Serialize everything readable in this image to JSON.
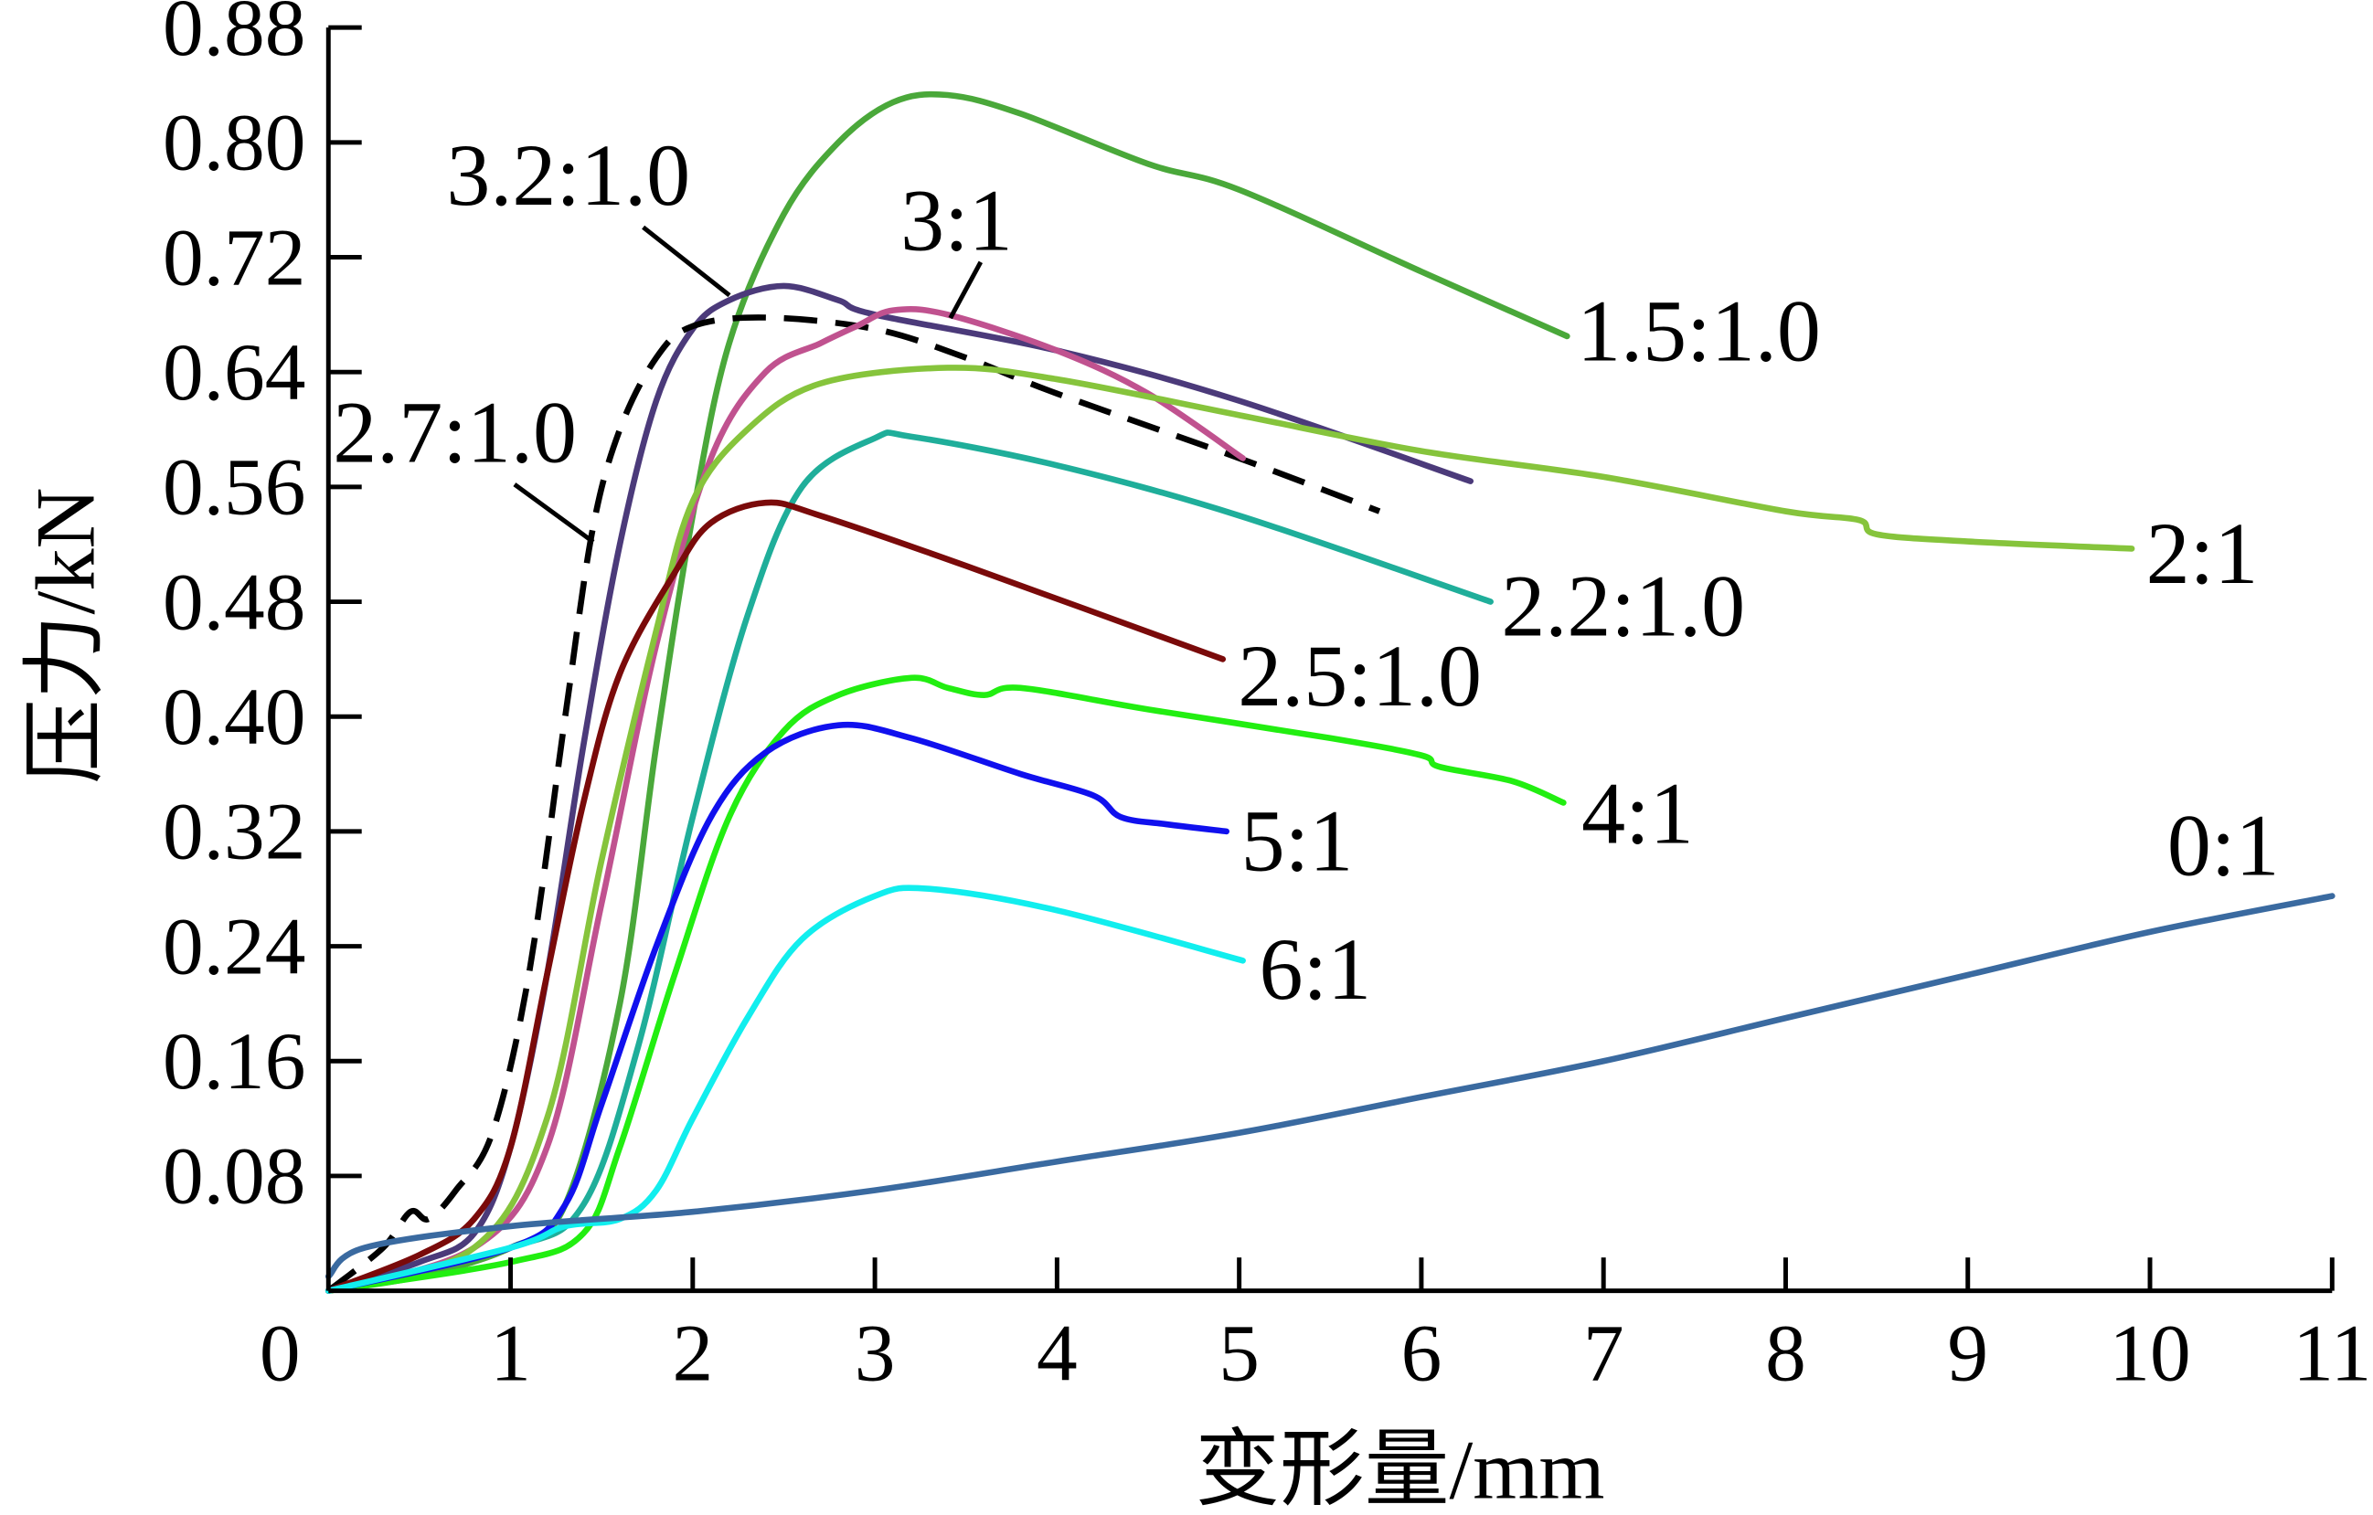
{
  "chart_data": {
    "type": "line",
    "title": "",
    "xlabel": "变形量/mm",
    "ylabel": "压力/kN",
    "xlim": [
      0,
      11
    ],
    "ylim": [
      0,
      0.88
    ],
    "xticks": [
      "0",
      "1",
      "2",
      "3",
      "4",
      "5",
      "6",
      "7",
      "8",
      "9",
      "10",
      "11"
    ],
    "yticks": [
      "0.08",
      "0.16",
      "0.24",
      "0.32",
      "0.40",
      "0.48",
      "0.56",
      "0.64",
      "0.72",
      "0.80",
      "0.88"
    ],
    "grid": false,
    "legend": "none (inline labels)",
    "series": [
      {
        "name": "1.5:1.0",
        "color": "#4aa83a",
        "dashed": false,
        "points": [
          [
            0,
            0
          ],
          [
            0.5,
            0.01
          ],
          [
            1,
            0.03
          ],
          [
            1.3,
            0.06
          ],
          [
            1.6,
            0.2
          ],
          [
            1.8,
            0.38
          ],
          [
            2.0,
            0.54
          ],
          [
            2.2,
            0.66
          ],
          [
            2.5,
            0.75
          ],
          [
            2.8,
            0.8
          ],
          [
            3.1,
            0.828
          ],
          [
            3.4,
            0.833
          ],
          [
            3.8,
            0.82
          ],
          [
            4.5,
            0.785
          ],
          [
            5,
            0.767
          ],
          [
            6,
            0.71
          ],
          [
            6.8,
            0.665
          ]
        ]
      },
      {
        "name": "3.2:1.0",
        "color": "#4b3a7a",
        "dashed": false,
        "points": [
          [
            0,
            0
          ],
          [
            0.5,
            0.02
          ],
          [
            0.8,
            0.04
          ],
          [
            1.0,
            0.1
          ],
          [
            1.2,
            0.22
          ],
          [
            1.4,
            0.38
          ],
          [
            1.6,
            0.52
          ],
          [
            1.8,
            0.62
          ],
          [
            2.0,
            0.67
          ],
          [
            2.2,
            0.69
          ],
          [
            2.5,
            0.7
          ],
          [
            2.8,
            0.69
          ],
          [
            3.0,
            0.68
          ],
          [
            4,
            0.655
          ],
          [
            5,
            0.62
          ],
          [
            6.27,
            0.564
          ]
        ]
      },
      {
        "name": "2.7:1.0",
        "color": "#000000",
        "dashed": true,
        "points": [
          [
            0,
            0
          ],
          [
            0.3,
            0.03
          ],
          [
            0.45,
            0.055
          ],
          [
            0.55,
            0.05
          ],
          [
            0.7,
            0.07
          ],
          [
            0.9,
            0.11
          ],
          [
            1.1,
            0.22
          ],
          [
            1.3,
            0.4
          ],
          [
            1.45,
            0.53
          ],
          [
            1.6,
            0.6
          ],
          [
            1.8,
            0.65
          ],
          [
            2.0,
            0.672
          ],
          [
            2.4,
            0.678
          ],
          [
            3,
            0.67
          ],
          [
            3.5,
            0.65
          ],
          [
            4,
            0.625
          ],
          [
            5,
            0.58
          ],
          [
            5.77,
            0.543
          ]
        ]
      },
      {
        "name": "3:1",
        "color": "#c0528f",
        "dashed": false,
        "points": [
          [
            0,
            0
          ],
          [
            0.8,
            0.03
          ],
          [
            1.2,
            0.1
          ],
          [
            1.5,
            0.27
          ],
          [
            1.8,
            0.45
          ],
          [
            2.1,
            0.58
          ],
          [
            2.4,
            0.64
          ],
          [
            2.7,
            0.66
          ],
          [
            2.9,
            0.672
          ],
          [
            3.1,
            0.683
          ],
          [
            3.4,
            0.68
          ],
          [
            4,
            0.655
          ],
          [
            4.5,
            0.625
          ],
          [
            5.02,
            0.58
          ]
        ]
      },
      {
        "name": "2:1",
        "color": "#86c43c",
        "dashed": false,
        "points": [
          [
            0,
            0
          ],
          [
            0.8,
            0.03
          ],
          [
            1.2,
            0.12
          ],
          [
            1.5,
            0.3
          ],
          [
            1.8,
            0.46
          ],
          [
            2.0,
            0.55
          ],
          [
            2.3,
            0.6
          ],
          [
            2.7,
            0.632
          ],
          [
            3.4,
            0.643
          ],
          [
            4,
            0.635
          ],
          [
            5,
            0.61
          ],
          [
            6,
            0.585
          ],
          [
            7,
            0.567
          ],
          [
            8,
            0.543
          ],
          [
            8.4,
            0.537
          ],
          [
            8.5,
            0.527
          ],
          [
            9,
            0.522
          ],
          [
            9.9,
            0.517
          ]
        ]
      },
      {
        "name": "2.2:1.0",
        "color": "#1fae9a",
        "dashed": false,
        "points": [
          [
            0,
            0
          ],
          [
            1,
            0.03
          ],
          [
            1.4,
            0.06
          ],
          [
            1.7,
            0.17
          ],
          [
            2.0,
            0.33
          ],
          [
            2.3,
            0.47
          ],
          [
            2.6,
            0.56
          ],
          [
            3.0,
            0.594
          ],
          [
            3.2,
            0.595
          ],
          [
            4,
            0.575
          ],
          [
            5,
            0.54
          ],
          [
            6.38,
            0.48
          ]
        ]
      },
      {
        "name": "2.5:1.0",
        "color": "#7a0a0a",
        "dashed": false,
        "points": [
          [
            0,
            0
          ],
          [
            0.5,
            0.025
          ],
          [
            0.8,
            0.05
          ],
          [
            1.0,
            0.1
          ],
          [
            1.2,
            0.22
          ],
          [
            1.4,
            0.34
          ],
          [
            1.6,
            0.43
          ],
          [
            1.9,
            0.5
          ],
          [
            2.1,
            0.535
          ],
          [
            2.4,
            0.549
          ],
          [
            2.7,
            0.54
          ],
          [
            3.5,
            0.505
          ],
          [
            4.91,
            0.44
          ]
        ]
      },
      {
        "name": "4:1",
        "color": "#22ee11",
        "dashed": false,
        "points": [
          [
            0,
            0
          ],
          [
            1,
            0.02
          ],
          [
            1.4,
            0.04
          ],
          [
            1.6,
            0.1
          ],
          [
            1.9,
            0.22
          ],
          [
            2.2,
            0.33
          ],
          [
            2.5,
            0.39
          ],
          [
            2.8,
            0.415
          ],
          [
            3.2,
            0.427
          ],
          [
            3.4,
            0.42
          ],
          [
            3.6,
            0.415
          ],
          [
            3.8,
            0.42
          ],
          [
            4.5,
            0.405
          ],
          [
            5.5,
            0.385
          ],
          [
            6,
            0.373
          ],
          [
            6.1,
            0.365
          ],
          [
            6.5,
            0.355
          ],
          [
            6.78,
            0.34
          ]
        ]
      },
      {
        "name": "5:1",
        "color": "#1010ee",
        "dashed": false,
        "points": [
          [
            0,
            0
          ],
          [
            1,
            0.03
          ],
          [
            1.3,
            0.06
          ],
          [
            1.5,
            0.13
          ],
          [
            1.8,
            0.24
          ],
          [
            2.1,
            0.33
          ],
          [
            2.4,
            0.375
          ],
          [
            2.8,
            0.394
          ],
          [
            3.2,
            0.385
          ],
          [
            3.8,
            0.36
          ],
          [
            4.2,
            0.345
          ],
          [
            4.35,
            0.33
          ],
          [
            4.6,
            0.325
          ],
          [
            4.93,
            0.32
          ]
        ]
      },
      {
        "name": "6:1",
        "color": "#11eeee",
        "dashed": false,
        "points": [
          [
            0,
            0
          ],
          [
            1,
            0.03
          ],
          [
            1.3,
            0.045
          ],
          [
            1.6,
            0.05
          ],
          [
            1.8,
            0.07
          ],
          [
            2.0,
            0.12
          ],
          [
            2.3,
            0.19
          ],
          [
            2.6,
            0.245
          ],
          [
            3.0,
            0.275
          ],
          [
            3.3,
            0.28
          ],
          [
            4,
            0.265
          ],
          [
            5.02,
            0.23
          ]
        ]
      },
      {
        "name": "0:1",
        "color": "#3a6aa0",
        "dashed": false,
        "points": [
          [
            0,
            0.01
          ],
          [
            0.2,
            0.03
          ],
          [
            1,
            0.045
          ],
          [
            2,
            0.055
          ],
          [
            3,
            0.07
          ],
          [
            4,
            0.09
          ],
          [
            5,
            0.11
          ],
          [
            6,
            0.135
          ],
          [
            7,
            0.16
          ],
          [
            8,
            0.19
          ],
          [
            9,
            0.22
          ],
          [
            10,
            0.25
          ],
          [
            11,
            0.275
          ]
        ]
      }
    ]
  }
}
